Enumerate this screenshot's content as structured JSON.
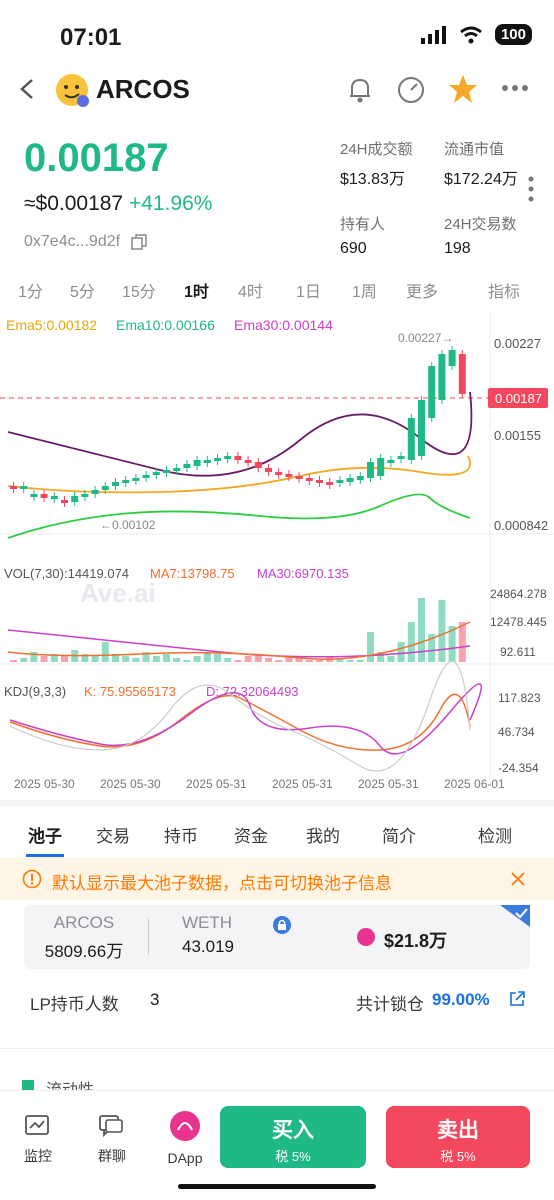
{
  "status": {
    "time": "07:01",
    "battery": "100"
  },
  "header": {
    "token": "ARCOS"
  },
  "price": {
    "main": "0.00187",
    "usd": "≈$0.00187",
    "change": "+41.96%",
    "address": "0x7e4c...9d2f"
  },
  "stats": [
    {
      "label": "24H成交额",
      "value": "$13.83万"
    },
    {
      "label": "流通市值",
      "value": "$172.24万"
    },
    {
      "label": "持有人",
      "value": "690"
    },
    {
      "label": "24H交易数",
      "value": "198"
    }
  ],
  "timeframes": [
    "1分",
    "5分",
    "15分",
    "1时",
    "4时",
    "1日",
    "1周",
    "更多",
    "指标"
  ],
  "active_timeframe": "1时",
  "indicators": {
    "ema5": "Ema5:0.00182",
    "ema10": "Ema10:0.00166",
    "ema30": "Ema30:0.00144",
    "vol": "VOL(7,30):14419.074",
    "ma7": "MA7:13798.75",
    "ma30": "MA30:6970.135",
    "kdj": "KDJ(9,3,3)",
    "k": "K: 75.95565173",
    "d": "D: 72.32064493",
    "watermark": "Ave.ai"
  },
  "chart_data": {
    "type": "candlestick",
    "price_axis": [
      "0.00227",
      "0.00155",
      "0.000842"
    ],
    "current_price_label": "0.00187",
    "high_label": "0.00227→",
    "low_label": "←0.00102",
    "volume_axis": [
      "24864.278",
      "12478.445",
      "92.611"
    ],
    "kdj_axis": [
      "117.823",
      "46.734",
      "-24.354"
    ],
    "x_labels": [
      "2025 05-30",
      "2025 05-30",
      "2025 05-31",
      "2025 05-31",
      "2025 05-31",
      "2025 06-01"
    ],
    "colors": {
      "up": "#1fb985",
      "down": "#f2475c",
      "ema5": "#f5a623",
      "ema10": "#2ecc40",
      "ema30": "#6a1b6a"
    }
  },
  "tabs": [
    "池子",
    "交易",
    "持币",
    "资金",
    "我的",
    "简介",
    "检测"
  ],
  "notice": "默认显示最大池子数据，点击可切换池子信息",
  "pool": {
    "a_name": "ARCOS",
    "a_val": "5809.66万",
    "b_name": "WETH",
    "b_val": "43.019",
    "liq": "$21.8万"
  },
  "lp": {
    "label": "LP持币人数",
    "count": "3",
    "lock_label": "共计锁仓",
    "lock_val": "99.00%"
  },
  "section": "流动性",
  "bottom": {
    "monitor": "监控",
    "chat": "群聊",
    "dapp": "DApp",
    "buy": "买入",
    "buy_tax": "税 5%",
    "sell": "卖出",
    "sell_tax": "税 5%"
  }
}
